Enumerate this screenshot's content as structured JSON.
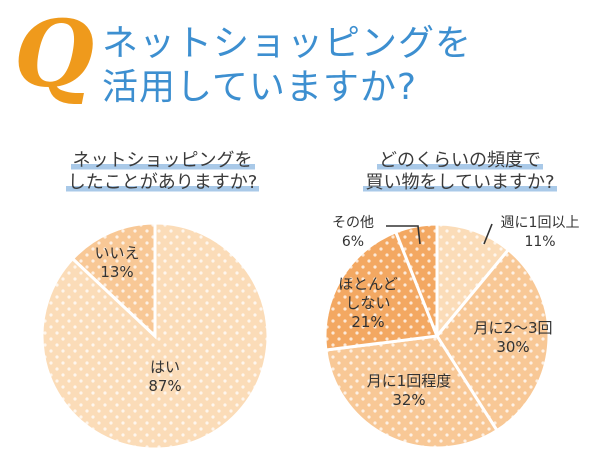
{
  "header": {
    "q_letter": "Q",
    "title_line1": "ネットショッピングを",
    "title_line2": "活用していますか?"
  },
  "colors": {
    "accent_orange": "#ef9a1c",
    "title_blue": "#3d8fd0",
    "underline_blue": "#a9c9e8",
    "pie_light": "#fbdcb8",
    "pie_mid": "#f8c896",
    "pie_dark": "#f3a862"
  },
  "chart_data": [
    {
      "type": "pie",
      "title_lines": [
        "ネットショッピングを",
        "したことがありますか?"
      ],
      "slices": [
        {
          "label": "はい",
          "value": 87,
          "value_text": "87%"
        },
        {
          "label": "いいえ",
          "value": 13,
          "value_text": "13%"
        }
      ]
    },
    {
      "type": "pie",
      "title_lines": [
        "どのくらいの頻度で",
        "買い物をしていますか?"
      ],
      "slices": [
        {
          "label": "週に1回以上",
          "value": 11,
          "value_text": "11%"
        },
        {
          "label": "月に2〜3回",
          "value": 30,
          "value_text": "30%"
        },
        {
          "label": "月に1回程度",
          "value": 32,
          "value_text": "32%"
        },
        {
          "label": "ほとんど しない",
          "value": 21,
          "value_text": "21%"
        },
        {
          "label": "その他",
          "value": 6,
          "value_text": "6%"
        }
      ]
    }
  ]
}
